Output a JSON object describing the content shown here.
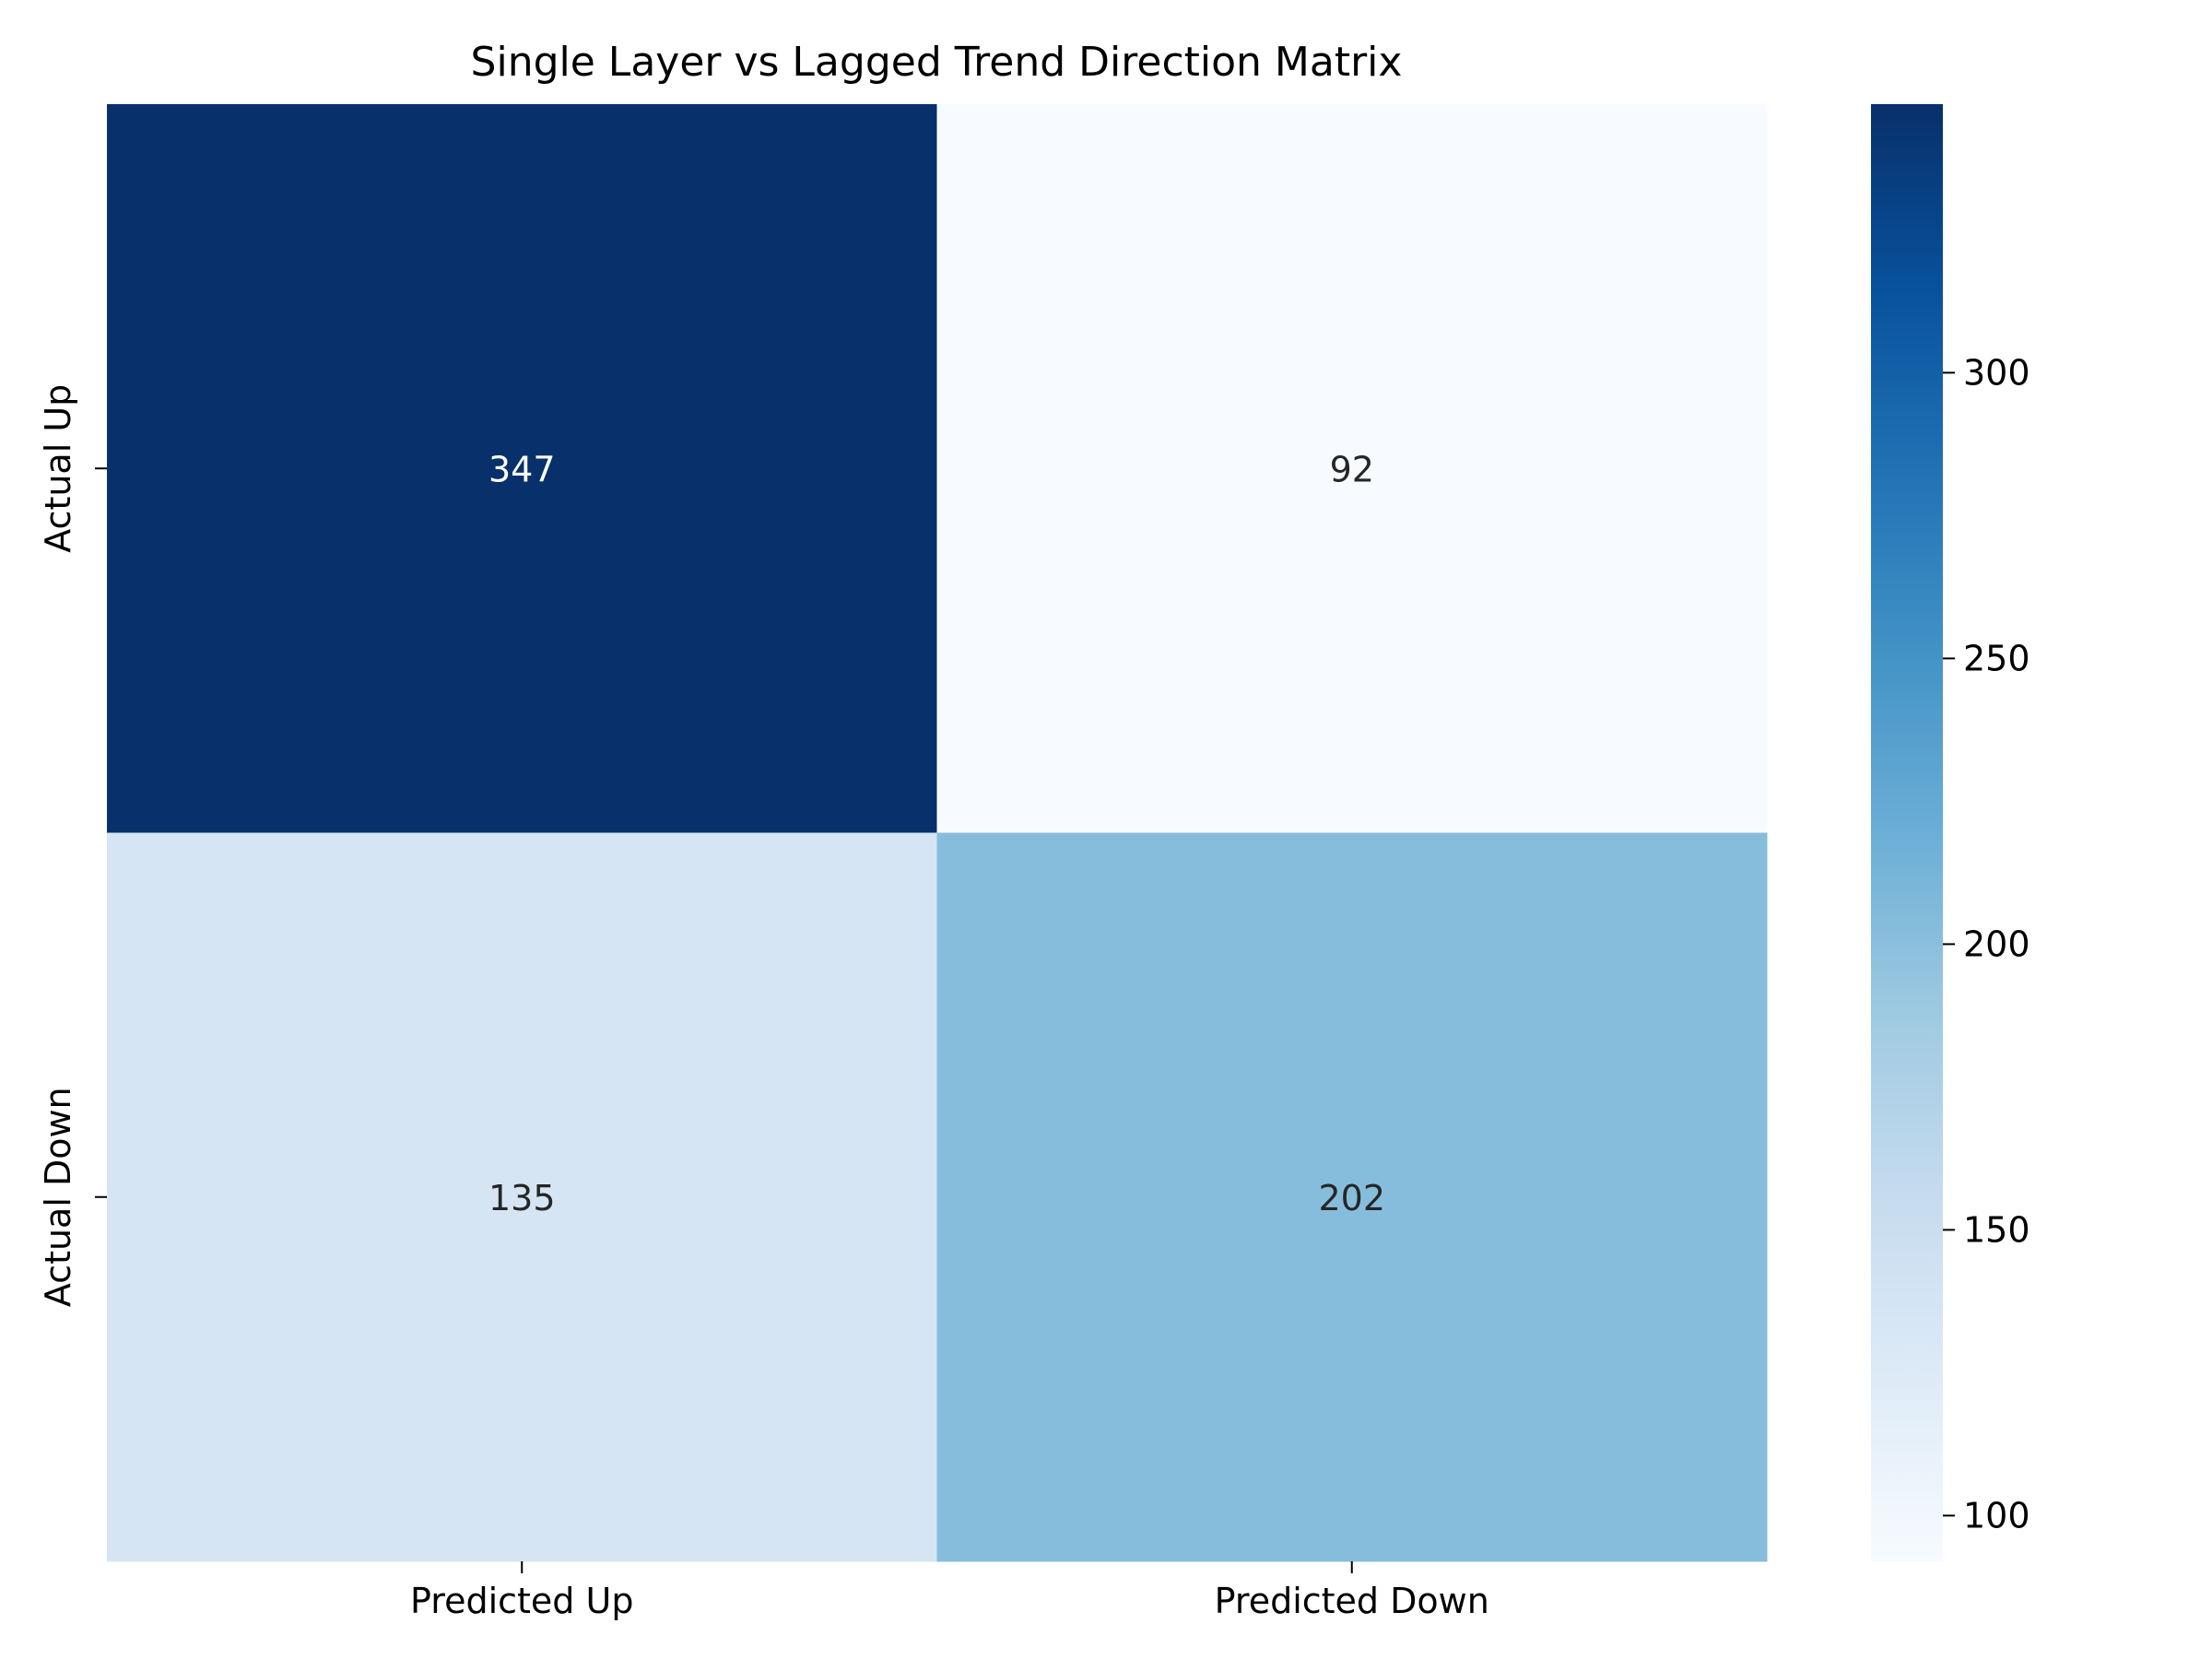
{
  "chart_data": {
    "type": "heatmap",
    "title": "Single Layer vs Lagged Trend Direction Matrix",
    "x_categories": [
      "Predicted Up",
      "Predicted Down"
    ],
    "y_categories": [
      "Actual Up",
      "Actual Down"
    ],
    "values": [
      [
        347,
        92
      ],
      [
        135,
        202
      ]
    ],
    "colormap": "Blues",
    "colorbar": {
      "range": [
        92,
        347
      ],
      "ticks": [
        100,
        150,
        200,
        250,
        300
      ],
      "tick_labels": [
        "100",
        "150",
        "200",
        "250",
        "300"
      ]
    },
    "annotation_colors": {
      "dark": "#262626",
      "light": "#ffffff"
    },
    "grid": false
  }
}
